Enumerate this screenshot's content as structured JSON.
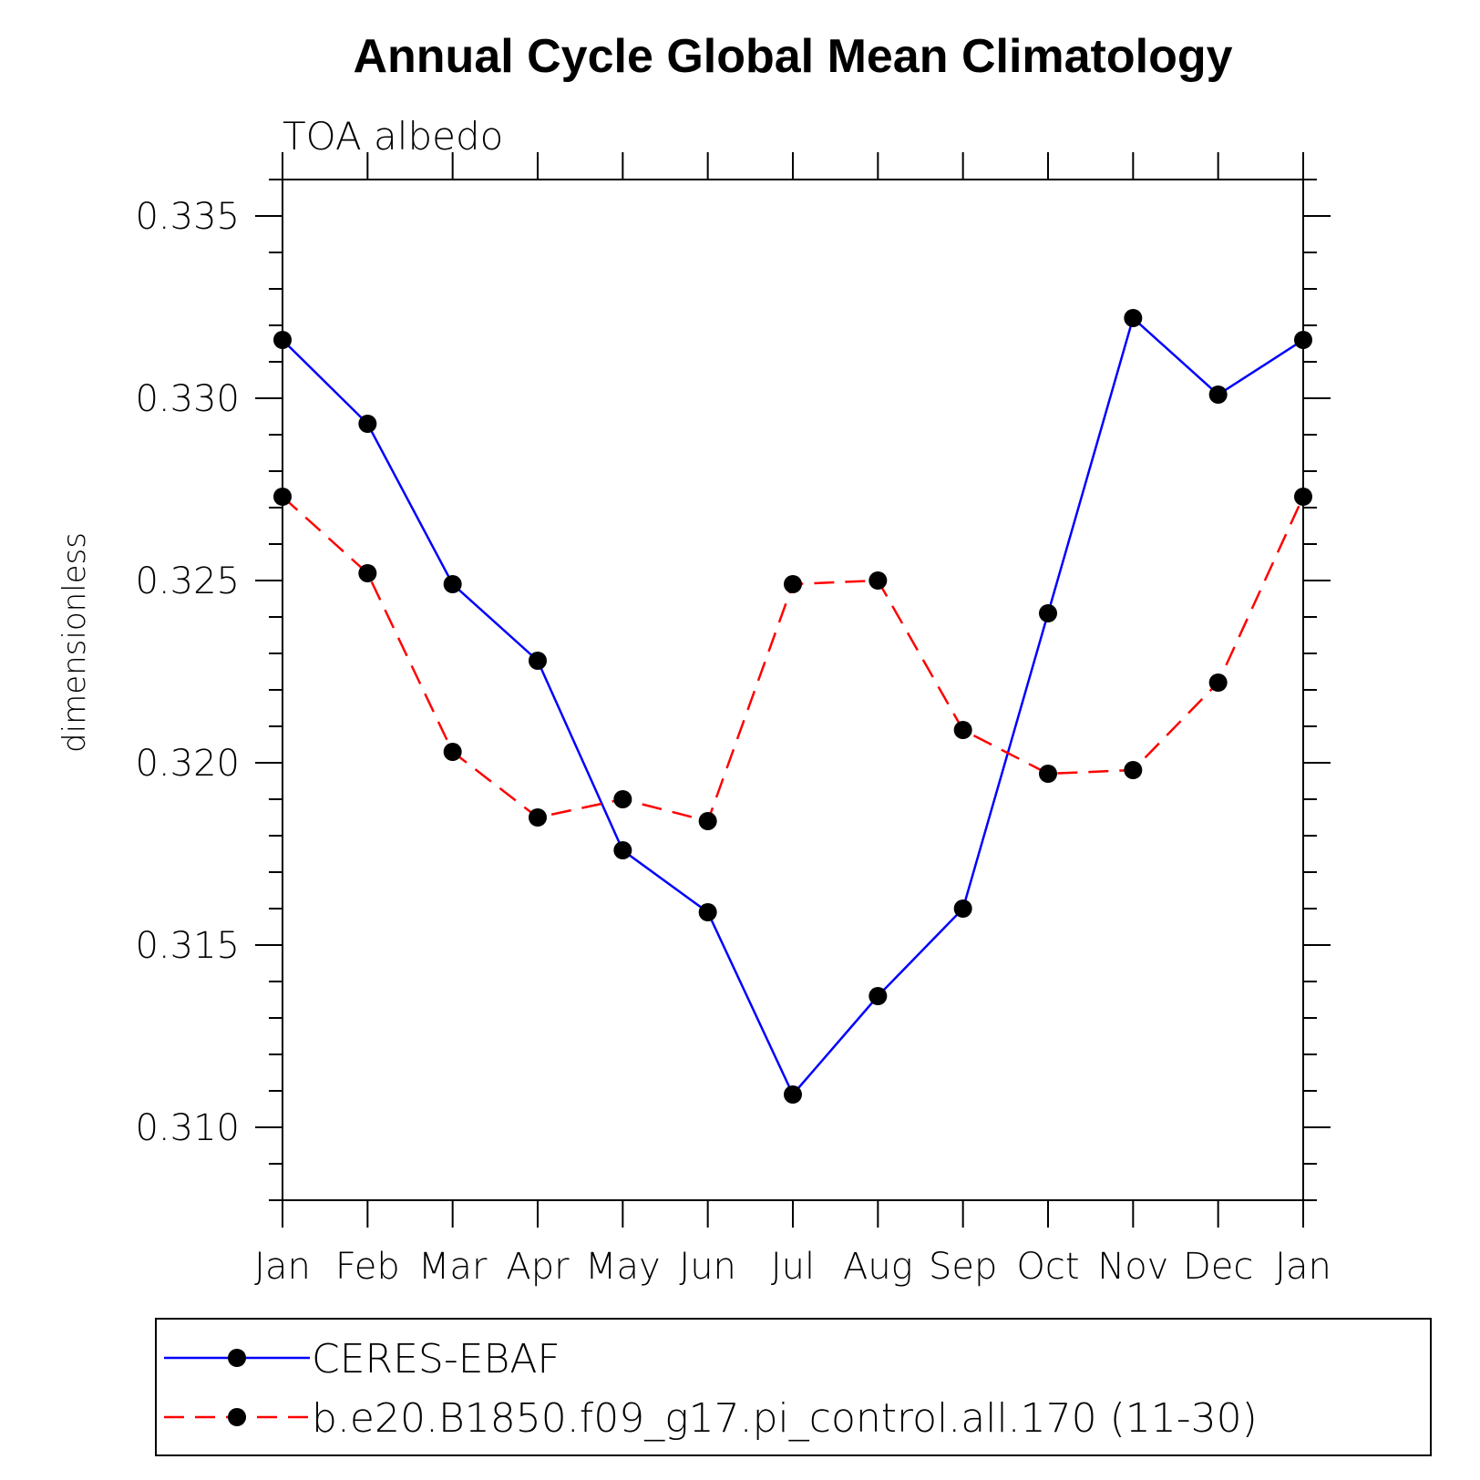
{
  "chart_data": {
    "type": "line",
    "title": "Annual Cycle Global Mean Climatology",
    "subtitle": "TOA albedo",
    "xlabel": "",
    "ylabel": "dimensionless",
    "categories": [
      "Jan",
      "Feb",
      "Mar",
      "Apr",
      "May",
      "Jun",
      "Jul",
      "Aug",
      "Sep",
      "Oct",
      "Nov",
      "Dec",
      "Jan"
    ],
    "ylim": [
      0.308,
      0.336
    ],
    "yticks": [
      "0.310",
      "0.315",
      "0.320",
      "0.325",
      "0.330",
      "0.335"
    ],
    "ytick_values": [
      0.31,
      0.315,
      0.32,
      0.325,
      0.33,
      0.335
    ],
    "yminor_step": 0.001,
    "grid": false,
    "legend_position": "bottom",
    "series": [
      {
        "name": "CERES-EBAF",
        "color": "#0000ff",
        "style": "solid",
        "marker": "filled-circle",
        "values": [
          0.3316,
          0.3293,
          0.3249,
          0.3228,
          0.3176,
          0.3159,
          0.3109,
          0.3136,
          0.316,
          0.3241,
          0.3322,
          0.3301,
          0.3316
        ]
      },
      {
        "name": "b.e20.B1850.f09_g17.pi_control.all.170 (11-30)",
        "color": "#ff0000",
        "style": "dashed",
        "marker": "filled-circle",
        "values": [
          0.3273,
          0.3252,
          0.3203,
          0.3185,
          0.319,
          0.3184,
          0.3249,
          0.325,
          0.3209,
          0.3197,
          0.3198,
          0.3222,
          0.3273
        ]
      }
    ]
  }
}
